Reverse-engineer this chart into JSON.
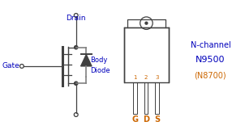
{
  "bg_color": "#ffffff",
  "sc": "#404040",
  "gray": "#808080",
  "blue": "#0000BB",
  "orange": "#CC6600",
  "gate_label": "Gate",
  "drain_label": "Drain",
  "body_label": "Body",
  "diode_label": "Diode",
  "nchannel_label": "N-channel",
  "n9500_label": "N9500",
  "n8700_label": "(N8700)",
  "g_label": "G",
  "d_label": "D",
  "s_label": "S",
  "pin_numbers": [
    "1",
    "2",
    "3"
  ],
  "figsize": [
    3.02,
    1.61
  ],
  "dpi": 100
}
